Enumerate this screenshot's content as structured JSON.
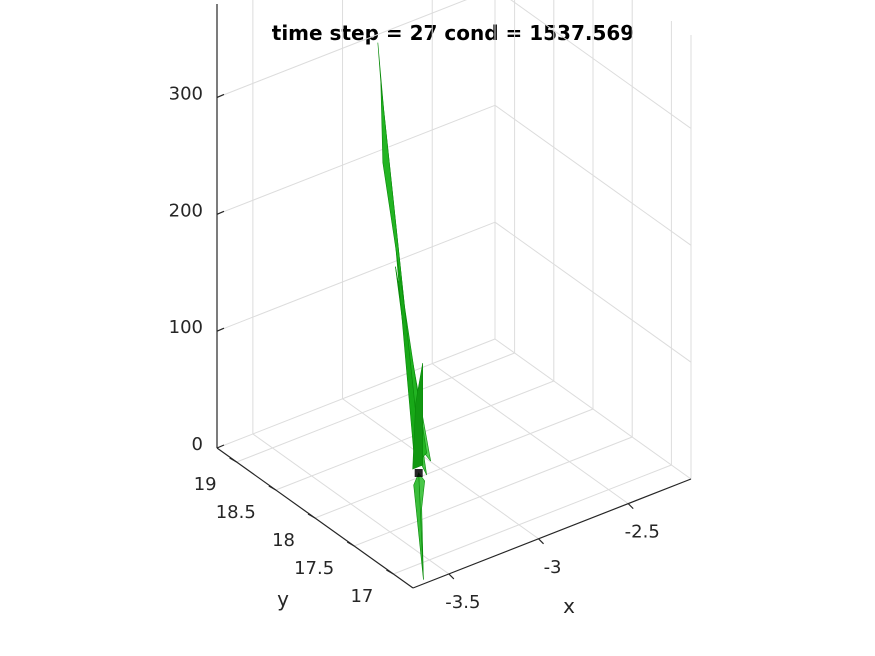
{
  "chart_data": {
    "type": "surface3d",
    "title": "time step = 27 cond = 1537.569",
    "xlabel": "x",
    "ylabel": "y",
    "zlabel": "",
    "x_ticks": [
      -3.5,
      -3,
      -2.5
    ],
    "x_tick_labels": [
      "-3.5",
      "-3",
      "-2.5"
    ],
    "y_ticks": [
      17,
      17.5,
      18,
      18.5,
      19
    ],
    "y_tick_labels": [
      "17",
      "17.5",
      "18",
      "18.5",
      "19"
    ],
    "z_ticks": [
      0,
      100,
      200,
      300
    ],
    "z_tick_labels": [
      "0",
      "100",
      "200",
      "300"
    ],
    "xlim": [
      -3.7,
      -2.15
    ],
    "ylim": [
      16.75,
      19.25
    ],
    "zlim": [
      0,
      380
    ],
    "grid": true,
    "surface_color": "#1fb31f",
    "surface_edge_color": "#0a8a0a",
    "marker_color": "#000000",
    "surface": {
      "main_spike": {
        "x": -3.12,
        "y": 18.5,
        "z": 348
      },
      "secondary_spike": {
        "x": -2.88,
        "y": 18.85,
        "z": 125
      },
      "tail_end": {
        "x": -3.62,
        "y": 16.8,
        "z": 0
      },
      "origin_point": {
        "x": -3.1,
        "y": 18.05,
        "z": 0
      }
    }
  }
}
